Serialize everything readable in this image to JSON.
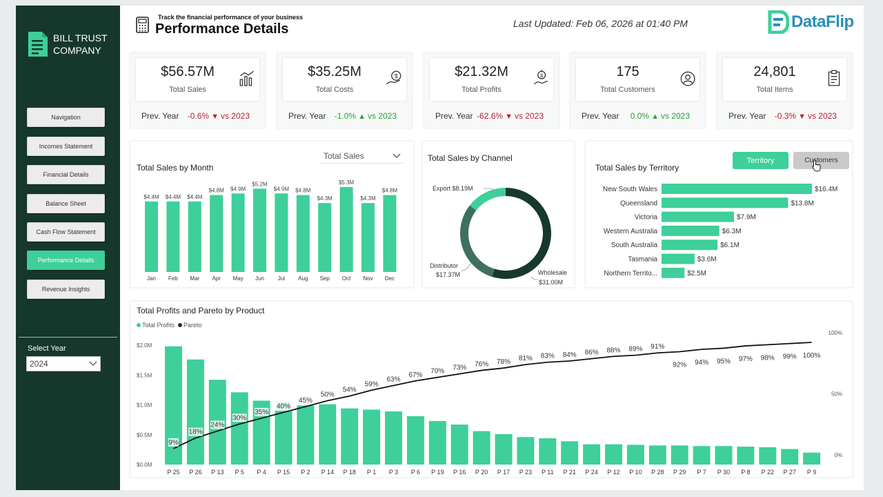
{
  "brand": {
    "name_line1": "BILL TRUST",
    "name_line2": "COMPANY"
  },
  "nav": [
    {
      "label": "Navigation",
      "active": false
    },
    {
      "label": "Incomes Statement",
      "active": false
    },
    {
      "label": "Financial Details",
      "active": false
    },
    {
      "label": "Balance Sheet",
      "active": false
    },
    {
      "label": "Cash Flow Statement",
      "active": false
    },
    {
      "label": "Performance Details",
      "active": true
    },
    {
      "label": "Revenue Insights",
      "active": false
    }
  ],
  "year_filter": {
    "label": "Select Year",
    "value": "2024"
  },
  "header": {
    "subtitle": "Track the financial performance of your business",
    "title": "Performance Details",
    "last_updated": "Last Updated: Feb 06, 2026 at 01:40 PM",
    "logo_text": "DataFlip"
  },
  "kpis": [
    {
      "value": "$56.57M",
      "label": "Total Sales",
      "prev": "Prev. Year",
      "change": "-0.6%",
      "direction": "down",
      "vs": "vs 2023",
      "icon": "sales-chart-icon"
    },
    {
      "value": "$35.25M",
      "label": "Total Costs",
      "prev": "Prev. Year",
      "change": "-1.0%",
      "direction": "up",
      "vs": "vs 2023",
      "icon": "cost-hand-icon"
    },
    {
      "value": "$21.32M",
      "label": "Total Profits",
      "prev": "Prev. Year",
      "change": "-62.6%",
      "direction": "down",
      "vs": "vs 2023",
      "icon": "profit-hand-icon"
    },
    {
      "value": "175",
      "label": "Total Customers",
      "prev": "Prev. Year",
      "change": "0.0%",
      "direction": "up",
      "vs": "vs 2023",
      "icon": "customer-icon"
    },
    {
      "value": "24,801",
      "label": "Total Items",
      "prev": "Prev. Year",
      "change": "-0.3%",
      "direction": "down",
      "vs": "vs 2023",
      "icon": "clipboard-icon"
    }
  ],
  "colors": {
    "accent": "#3ecf9a",
    "sidebar": "#16382c",
    "neg": "#c0212f",
    "pos": "#2e9e3e",
    "dark": "#17382b",
    "mid": "#3f6f5e"
  },
  "chart_data": [
    {
      "type": "bar",
      "title": "Total Sales by Month",
      "dropdown": "Total Sales",
      "categories": [
        "Jan",
        "Feb",
        "Mar",
        "Apr",
        "May",
        "Jun",
        "Jul",
        "Aug",
        "Sep",
        "Oct",
        "Nov",
        "Dec"
      ],
      "values": [
        4.4,
        4.4,
        4.4,
        4.8,
        4.9,
        5.2,
        4.9,
        4.8,
        4.3,
        5.3,
        4.3,
        4.8
      ],
      "data_labels": [
        "$4.4M",
        "$4.4M",
        "$4.4M",
        "$4.8M",
        "$4.9M",
        "$5.2M",
        "$4.9M",
        "$4.8M",
        "$4.3M",
        "$5.3M",
        "$4.3M",
        "$4.8M"
      ],
      "ylim": [
        0,
        5.6
      ]
    },
    {
      "type": "pie",
      "title": "Total Sales by Channel",
      "categories": [
        "Export",
        "Distributor",
        "Wholesale"
      ],
      "values": [
        8.19,
        17.37,
        31.0
      ],
      "label_lines": [
        [
          "Export $8.19M"
        ],
        [
          "Distributor",
          "$17.37M"
        ],
        [
          "Wholesale",
          "$31.00M"
        ]
      ]
    },
    {
      "type": "bar",
      "title": "Total Sales by Territory",
      "toggle": [
        "Territory",
        "Customers"
      ],
      "categories": [
        "New South Wales",
        "Queensland",
        "Victoria",
        "Western Australia",
        "South Australia",
        "Tasmania",
        "Northern Territo..."
      ],
      "values": [
        16.4,
        13.8,
        7.9,
        6.3,
        6.1,
        3.6,
        2.5
      ],
      "data_labels": [
        "$16.4M",
        "$13.8M",
        "$7.9M",
        "$6.3M",
        "$6.1M",
        "$3.6M",
        "$2.5M"
      ],
      "xlim": [
        0,
        16.4
      ]
    },
    {
      "type": "bar",
      "title": "Total Profits and Pareto by Product",
      "legend": [
        "Total Profits",
        "Pareto"
      ],
      "categories": [
        "P 25",
        "P 26",
        "P 13",
        "P 5",
        "P 4",
        "P 15",
        "P 2",
        "P 14",
        "P 18",
        "P 1",
        "P 3",
        "P 6",
        "P 19",
        "P 16",
        "P 20",
        "P 17",
        "P 23",
        "P 11",
        "P 21",
        "P 24",
        "P 12",
        "P 10",
        "P 28",
        "P 29",
        "P 7",
        "P 30",
        "P 8",
        "P 22",
        "P 27",
        "P 9"
      ],
      "series": [
        {
          "name": "Total Profits",
          "values": [
            1.98,
            1.76,
            1.42,
            1.21,
            1.07,
            0.9,
            0.99,
            1.01,
            0.94,
            0.92,
            0.89,
            0.81,
            0.73,
            0.67,
            0.56,
            0.51,
            0.46,
            0.44,
            0.39,
            0.34,
            0.34,
            0.33,
            0.32,
            0.32,
            0.31,
            0.31,
            0.3,
            0.29,
            0.26,
            0.2
          ]
        },
        {
          "name": "Pareto",
          "values": [
            9,
            18,
            24,
            30,
            35,
            40,
            45,
            50,
            54,
            59,
            63,
            67,
            70,
            73,
            76,
            78,
            81,
            83,
            84,
            86,
            88,
            89,
            91,
            92,
            94,
            95,
            97,
            98,
            99,
            100
          ]
        }
      ],
      "y_ticks": [
        "$0.0M",
        "$0.5M",
        "$1.0M",
        "$1.5M",
        "$2.0M"
      ],
      "y2_ticks": [
        "0%",
        "50%",
        "100%"
      ],
      "ylim": [
        0,
        2.0
      ],
      "y2lim": [
        0,
        100
      ]
    }
  ]
}
